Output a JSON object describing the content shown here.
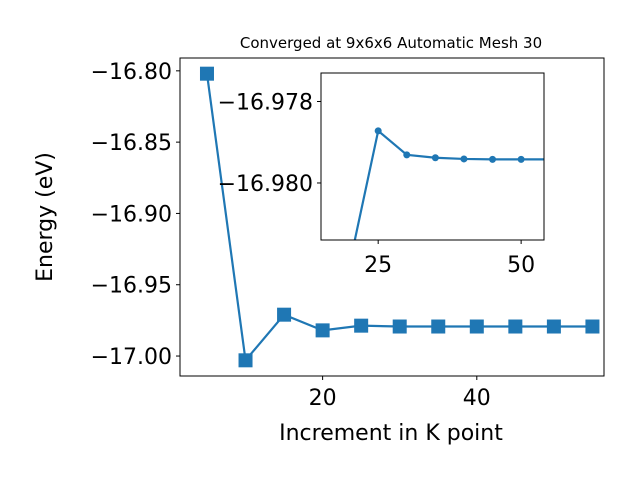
{
  "chart_data": [
    {
      "type": "line",
      "title": "Converged at 9x6x6 Automatic Mesh 30",
      "xlabel": "Increment in K point",
      "ylabel": "Energy (eV)",
      "xlim": [
        1.5,
        56.5
      ],
      "ylim": [
        -17.014,
        -16.791
      ],
      "x_ticks": [
        20,
        40
      ],
      "x_tick_labels": [
        "20",
        "40"
      ],
      "y_ticks": [
        -17.0,
        -16.95,
        -16.9,
        -16.85,
        -16.8
      ],
      "y_tick_labels": [
        "−17.00",
        "−16.95",
        "−16.90",
        "−16.85",
        "−16.80"
      ],
      "marker": "square",
      "color": "#1f77b4",
      "grid": false,
      "series": [
        {
          "x": [
            5,
            10,
            15,
            20,
            25,
            30,
            35,
            40,
            45,
            50,
            55
          ],
          "y": [
            -16.802,
            -17.003,
            -16.971,
            -16.982,
            -16.9787,
            -16.9793,
            -16.9793,
            -16.9793,
            -16.9793,
            -16.9793,
            -16.9793
          ]
        }
      ]
    },
    {
      "type": "line",
      "title": "",
      "xlim": [
        15,
        54
      ],
      "ylim": [
        -16.9814,
        -16.9773
      ],
      "x_ticks": [
        25,
        50
      ],
      "x_tick_labels": [
        "25",
        "50"
      ],
      "y_ticks": [
        -16.98,
        -16.978
      ],
      "y_tick_labels": [
        "−16.980",
        "−16.978"
      ],
      "marker": "circle",
      "color": "#1f77b4",
      "grid": false,
      "series": [
        {
          "x": [
            20,
            25,
            30,
            35,
            40,
            45,
            50,
            55
          ],
          "y": [
            -16.982,
            -16.97872,
            -16.97931,
            -16.97938,
            -16.97941,
            -16.97942,
            -16.97942,
            -16.97942
          ]
        }
      ]
    }
  ]
}
